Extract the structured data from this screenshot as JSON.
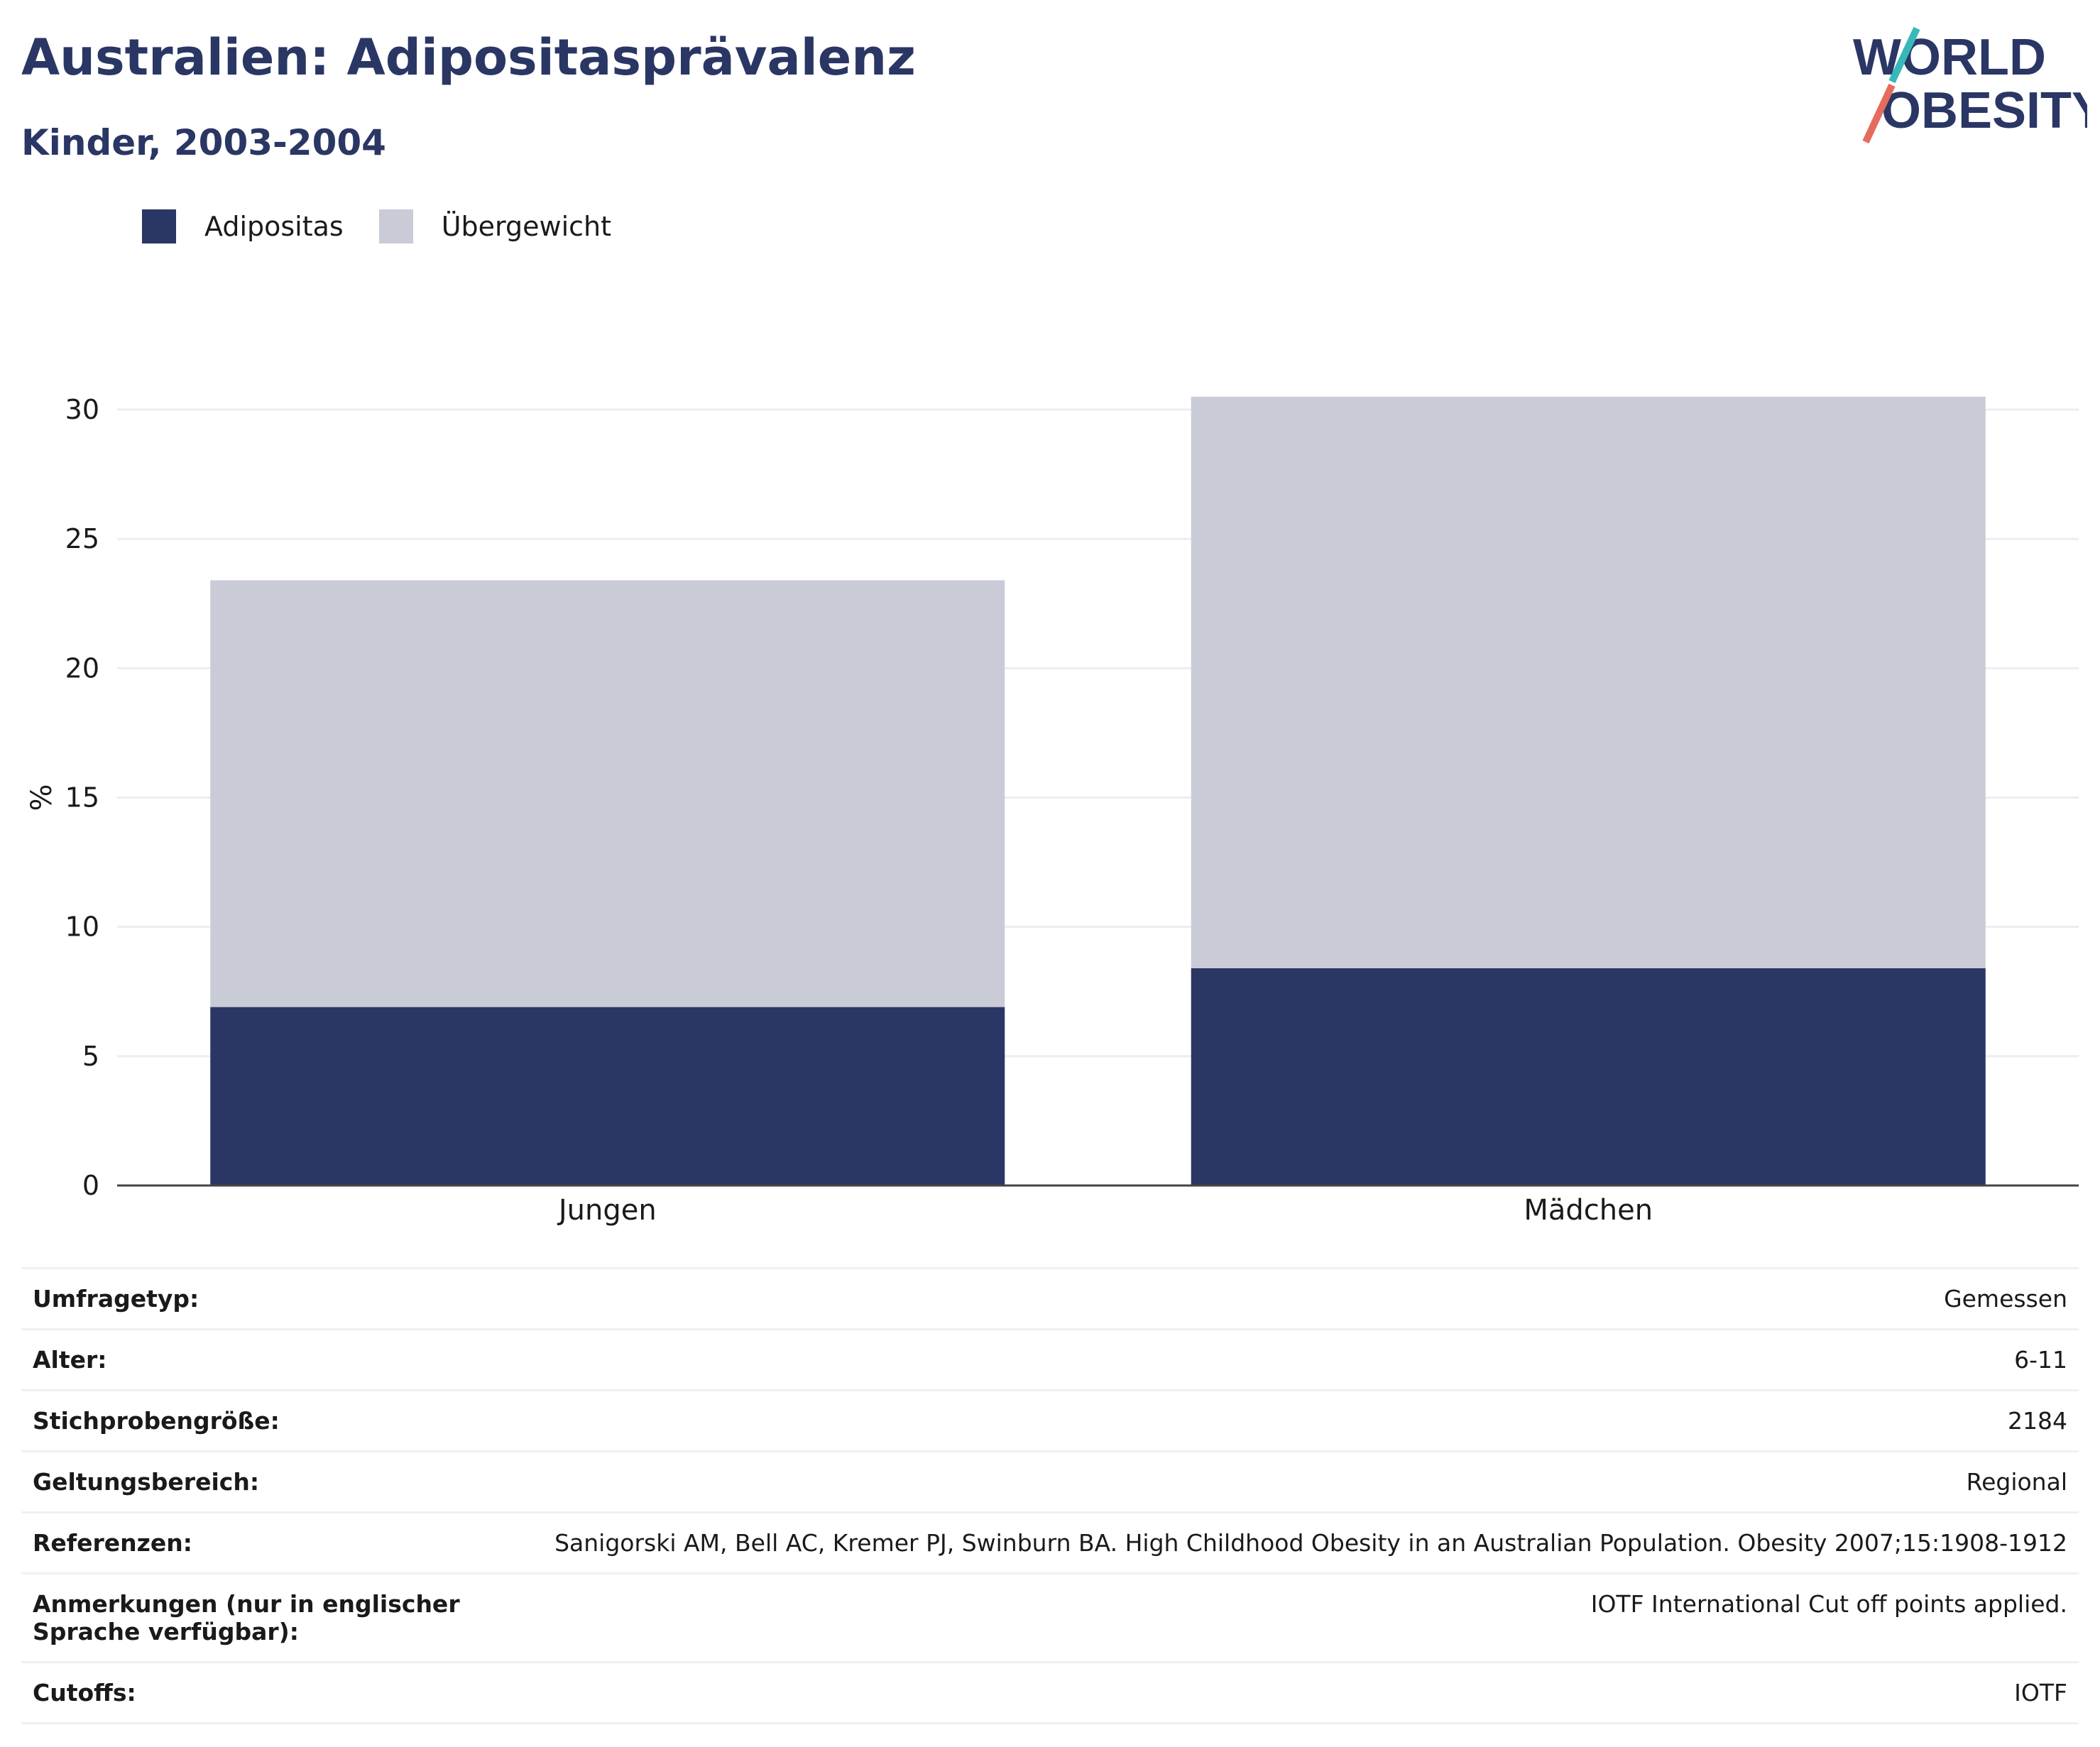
{
  "header": {
    "title": "Australien: Adipositasprävalenz",
    "subtitle": "Kinder, 2003-2004"
  },
  "logo": {
    "line1": "WORLD",
    "line2": "OBESITY"
  },
  "colors": {
    "adipositas": "#2a3664",
    "uebergewicht": "#c9cbd7",
    "title": "#2a3664"
  },
  "chart_data": {
    "type": "bar",
    "stacked": true,
    "categories": [
      "Jungen",
      "Mädchen"
    ],
    "series": [
      {
        "name": "Adipositas",
        "values": [
          6.9,
          8.4
        ]
      },
      {
        "name": "Übergewicht",
        "values": [
          16.5,
          22.1
        ]
      }
    ],
    "ylabel": "%",
    "ylim": [
      0,
      30
    ],
    "yticks": [
      "0",
      "5",
      "10",
      "15",
      "20",
      "25",
      "30"
    ],
    "grid": true,
    "legend_position": "top-left"
  },
  "meta": [
    {
      "label": "Umfragetyp:",
      "value": "Gemessen"
    },
    {
      "label": "Alter:",
      "value": "6-11"
    },
    {
      "label": "Stichprobengröße:",
      "value": "2184"
    },
    {
      "label": "Geltungsbereich:",
      "value": "Regional"
    },
    {
      "label": "Referenzen:",
      "value": "Sanigorski AM, Bell AC, Kremer PJ, Swinburn BA. High Childhood Obesity in an Australian Population. Obesity 2007;15:1908-1912"
    },
    {
      "label": "Anmerkungen (nur in englischer Sprache verfügbar):",
      "value": "IOTF International Cut off points applied."
    },
    {
      "label": "Cutoffs:",
      "value": "IOTF"
    }
  ]
}
